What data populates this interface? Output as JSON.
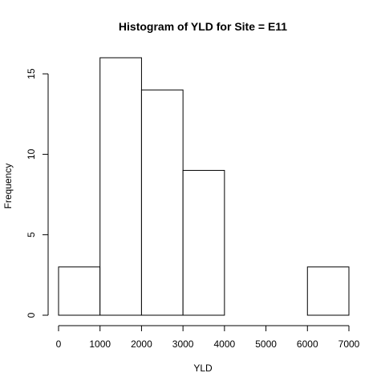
{
  "chart_data": {
    "type": "bar",
    "title": "Histogram of YLD for Site = E11",
    "xlabel": "YLD",
    "ylabel": "Frequency",
    "bins": [
      {
        "start": 0,
        "end": 1000,
        "count": 3
      },
      {
        "start": 1000,
        "end": 2000,
        "count": 16
      },
      {
        "start": 2000,
        "end": 3000,
        "count": 14
      },
      {
        "start": 3000,
        "end": 4000,
        "count": 9
      },
      {
        "start": 4000,
        "end": 5000,
        "count": 0
      },
      {
        "start": 5000,
        "end": 6000,
        "count": 0
      },
      {
        "start": 6000,
        "end": 7000,
        "count": 3
      }
    ],
    "xlim": [
      0,
      7000
    ],
    "ylim": [
      0,
      16
    ],
    "x_ticks": [
      0,
      1000,
      2000,
      3000,
      4000,
      5000,
      6000,
      7000
    ],
    "x_tick_labels": [
      "0",
      "1000",
      "2000",
      "3000",
      "4000",
      "5000",
      "6000",
      "7000"
    ],
    "y_ticks": [
      0,
      5,
      10,
      15
    ],
    "y_tick_labels": [
      "0",
      "5",
      "10",
      "15"
    ],
    "grid": false,
    "legend": "none"
  }
}
